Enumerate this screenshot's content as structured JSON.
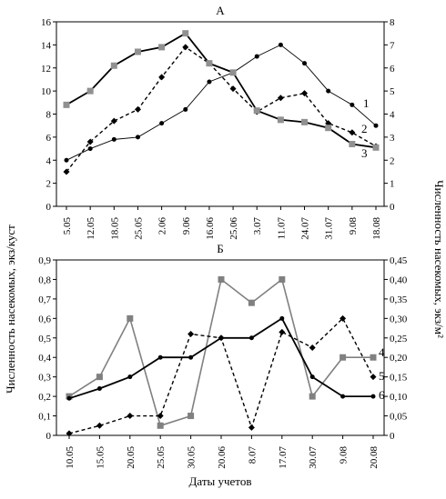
{
  "chart_data": [
    {
      "panel": "A",
      "type": "line",
      "title": "А",
      "categories": [
        "5.05",
        "12.05",
        "18.05",
        "25.05",
        "2.06",
        "9.06",
        "16.06",
        "25.06",
        "3.07",
        "11.07",
        "24.07",
        "31.07",
        "9.08",
        "18.08"
      ],
      "ylim_left": [
        0,
        16
      ],
      "yticks_left": [
        0,
        2,
        4,
        6,
        8,
        10,
        12,
        14,
        16
      ],
      "ylim_right": [
        0,
        8
      ],
      "yticks_right": [
        0,
        1,
        2,
        3,
        4,
        5,
        6,
        7,
        8
      ],
      "ylabel_right": "экз/м²",
      "series": [
        {
          "label": "1",
          "axis": "right",
          "style": "thin-solid",
          "marker": "dot",
          "color": "#000000",
          "values": [
            2.0,
            2.5,
            2.9,
            3.0,
            3.6,
            4.2,
            5.4,
            5.8,
            6.5,
            7.0,
            6.2,
            5.0,
            4.4,
            3.5
          ]
        },
        {
          "label": "2",
          "axis": "right",
          "style": "dashed",
          "marker": "diamond",
          "color": "#000000",
          "values": [
            1.5,
            2.8,
            3.7,
            4.2,
            5.6,
            6.9,
            6.2,
            5.1,
            4.1,
            4.7,
            4.9,
            3.6,
            3.2,
            2.6
          ]
        },
        {
          "label": "3",
          "axis": "left",
          "style": "thick-solid",
          "marker": "square",
          "color": "#000000",
          "values": [
            8.8,
            10.0,
            12.2,
            13.4,
            13.8,
            15.0,
            12.4,
            11.6,
            8.3,
            7.5,
            7.3,
            6.8,
            5.4,
            5.1
          ]
        }
      ]
    },
    {
      "panel": "B",
      "type": "line",
      "title": "Б",
      "xlabel": "Даты учетов",
      "categories": [
        "10.05",
        "15.05",
        "20.05",
        "25.05",
        "30.05",
        "20.06",
        "8.07",
        "17.07",
        "30.07",
        "9.08",
        "20.08"
      ],
      "ylim_left": [
        0,
        0.9
      ],
      "yticks_left": [
        "0",
        "0,1",
        "0,2",
        "0,3",
        "0,4",
        "0,5",
        "0,6",
        "0,7",
        "0,8",
        "0,9"
      ],
      "ylim_right": [
        0,
        0.45
      ],
      "yticks_right": [
        "0",
        "0,05",
        "0,10",
        "0,15",
        "0,20",
        "0,25",
        "0,30",
        "0,35",
        "0,40",
        "0,45"
      ],
      "series": [
        {
          "label": "4",
          "axis": "left",
          "style": "solid-gray",
          "marker": "square",
          "color": "#808080",
          "values": [
            0.2,
            0.3,
            0.6,
            0.05,
            0.1,
            0.8,
            0.68,
            0.8,
            0.2,
            0.4,
            0.4
          ]
        },
        {
          "label": "5",
          "axis": "right",
          "style": "dashed",
          "marker": "diamond",
          "color": "#000000",
          "values": [
            0.005,
            0.025,
            0.05,
            0.05,
            0.26,
            0.25,
            0.02,
            0.265,
            0.225,
            0.3,
            0.15
          ]
        },
        {
          "label": "6",
          "axis": "left",
          "style": "thick-solid",
          "marker": "dot",
          "color": "#000000",
          "values": [
            0.19,
            0.24,
            0.3,
            0.4,
            0.4,
            0.5,
            0.5,
            0.6,
            0.3,
            0.2,
            0.2
          ]
        }
      ]
    }
  ],
  "shared_ylabel": "Численность насекомых, экз/куст",
  "shared_ylabel_right": "Численность насекомых, экз/м²"
}
